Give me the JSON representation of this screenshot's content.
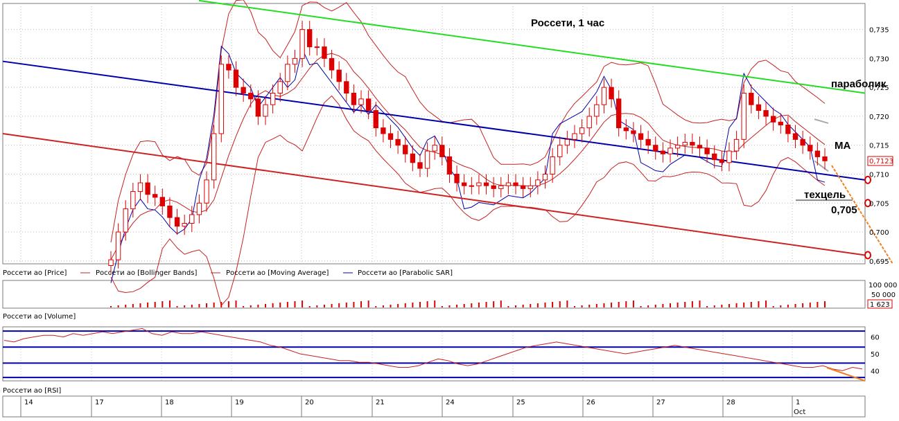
{
  "chart_data": {
    "type": "candlestick",
    "title": "Россети, 1 час",
    "price_axis": {
      "ylim": [
        0.6945,
        0.7395
      ],
      "ticks": [
        "0,695",
        "0,700",
        "0,705",
        "0,710",
        "0,715",
        "0,720",
        "0,725",
        "0,730",
        "0,735"
      ]
    },
    "last_price_label": "0,7123",
    "x_day_labels": [
      "14",
      "17",
      "18",
      "19",
      "20",
      "21",
      "24",
      "25",
      "26",
      "27",
      "28",
      "1"
    ],
    "month_label": "Oct",
    "legend": [
      "Россети ао [Price]",
      "Россети ао [Bollinger Bands]",
      "Россети ао [Moving Average]",
      "Россети ао [Parabolic SAR]"
    ],
    "annotations": {
      "parabolic": "параболик",
      "ma": "МА",
      "target": "техцель",
      "target_value": "0,705"
    },
    "candles_close_approx": [
      0.6952,
      0.7,
      0.704,
      0.707,
      0.7085,
      0.7065,
      0.706,
      0.7045,
      0.7025,
      0.701,
      0.7015,
      0.703,
      0.705,
      0.709,
      0.717,
      0.729,
      0.728,
      0.725,
      0.724,
      0.723,
      0.72,
      0.722,
      0.724,
      0.726,
      0.729,
      0.73,
      0.735,
      0.732,
      0.732,
      0.73,
      0.728,
      0.726,
      0.724,
      0.722,
      0.723,
      0.721,
      0.718,
      0.717,
      0.716,
      0.715,
      0.7135,
      0.712,
      0.711,
      0.714,
      0.715,
      0.713,
      0.71,
      0.7085,
      0.708,
      0.708,
      0.7085,
      0.708,
      0.7075,
      0.708,
      0.7085,
      0.708,
      0.7075,
      0.708,
      0.709,
      0.71,
      0.713,
      0.715,
      0.716,
      0.717,
      0.718,
      0.72,
      0.722,
      0.725,
      0.723,
      0.718,
      0.7175,
      0.717,
      0.716,
      0.715,
      0.714,
      0.7135,
      0.7145,
      0.715,
      0.7155,
      0.715,
      0.7145,
      0.7135,
      0.7125,
      0.712,
      0.714,
      0.716,
      0.724,
      0.722,
      0.721,
      0.72,
      0.719,
      0.7185,
      0.717,
      0.716,
      0.715,
      0.714,
      0.713,
      0.7123
    ],
    "trend_lines": {
      "green_upper": {
        "start": 0.74,
        "end": 0.724
      },
      "blue_middle": {
        "start": 0.7295,
        "end": 0.709
      },
      "red_lower": {
        "start": 0.717,
        "end": 0.696
      }
    },
    "volume_pane": {
      "label": "Россети ао [Volume]",
      "ticks": [
        "100 000",
        "50 000"
      ],
      "last_value": "1 623"
    },
    "rsi_pane": {
      "label": "Россети ао [RSI]",
      "ticks": [
        "60",
        "50",
        "40"
      ],
      "levels": [
        63.5,
        54,
        44.5,
        36
      ],
      "ylim": [
        34,
        66
      ],
      "values": [
        58,
        57,
        59,
        60,
        61,
        61,
        60,
        62,
        61,
        62,
        63,
        62,
        63,
        64,
        65,
        62,
        61,
        63,
        62,
        62,
        63,
        62,
        61,
        60,
        59,
        58,
        57,
        55,
        54,
        52,
        50,
        49,
        48,
        47,
        46,
        46,
        45,
        45,
        44,
        43,
        42,
        42,
        43,
        45,
        47,
        46,
        44,
        43,
        44,
        46,
        48,
        50,
        52,
        54,
        55,
        56,
        57,
        56,
        55,
        54,
        53,
        52,
        51,
        50,
        51,
        52,
        53,
        54,
        55,
        54,
        53,
        52,
        51,
        50,
        49,
        48,
        47,
        46,
        45,
        44,
        43,
        42,
        42,
        43,
        41,
        40,
        42,
        41
      ]
    },
    "colors": {
      "up": "#ffffff",
      "down": "#dd0000",
      "green_line": "#22dd22",
      "blue_line": "#0000aa",
      "red_line": "#cc2222",
      "orange": "#f08020",
      "band": "#c62020"
    }
  }
}
